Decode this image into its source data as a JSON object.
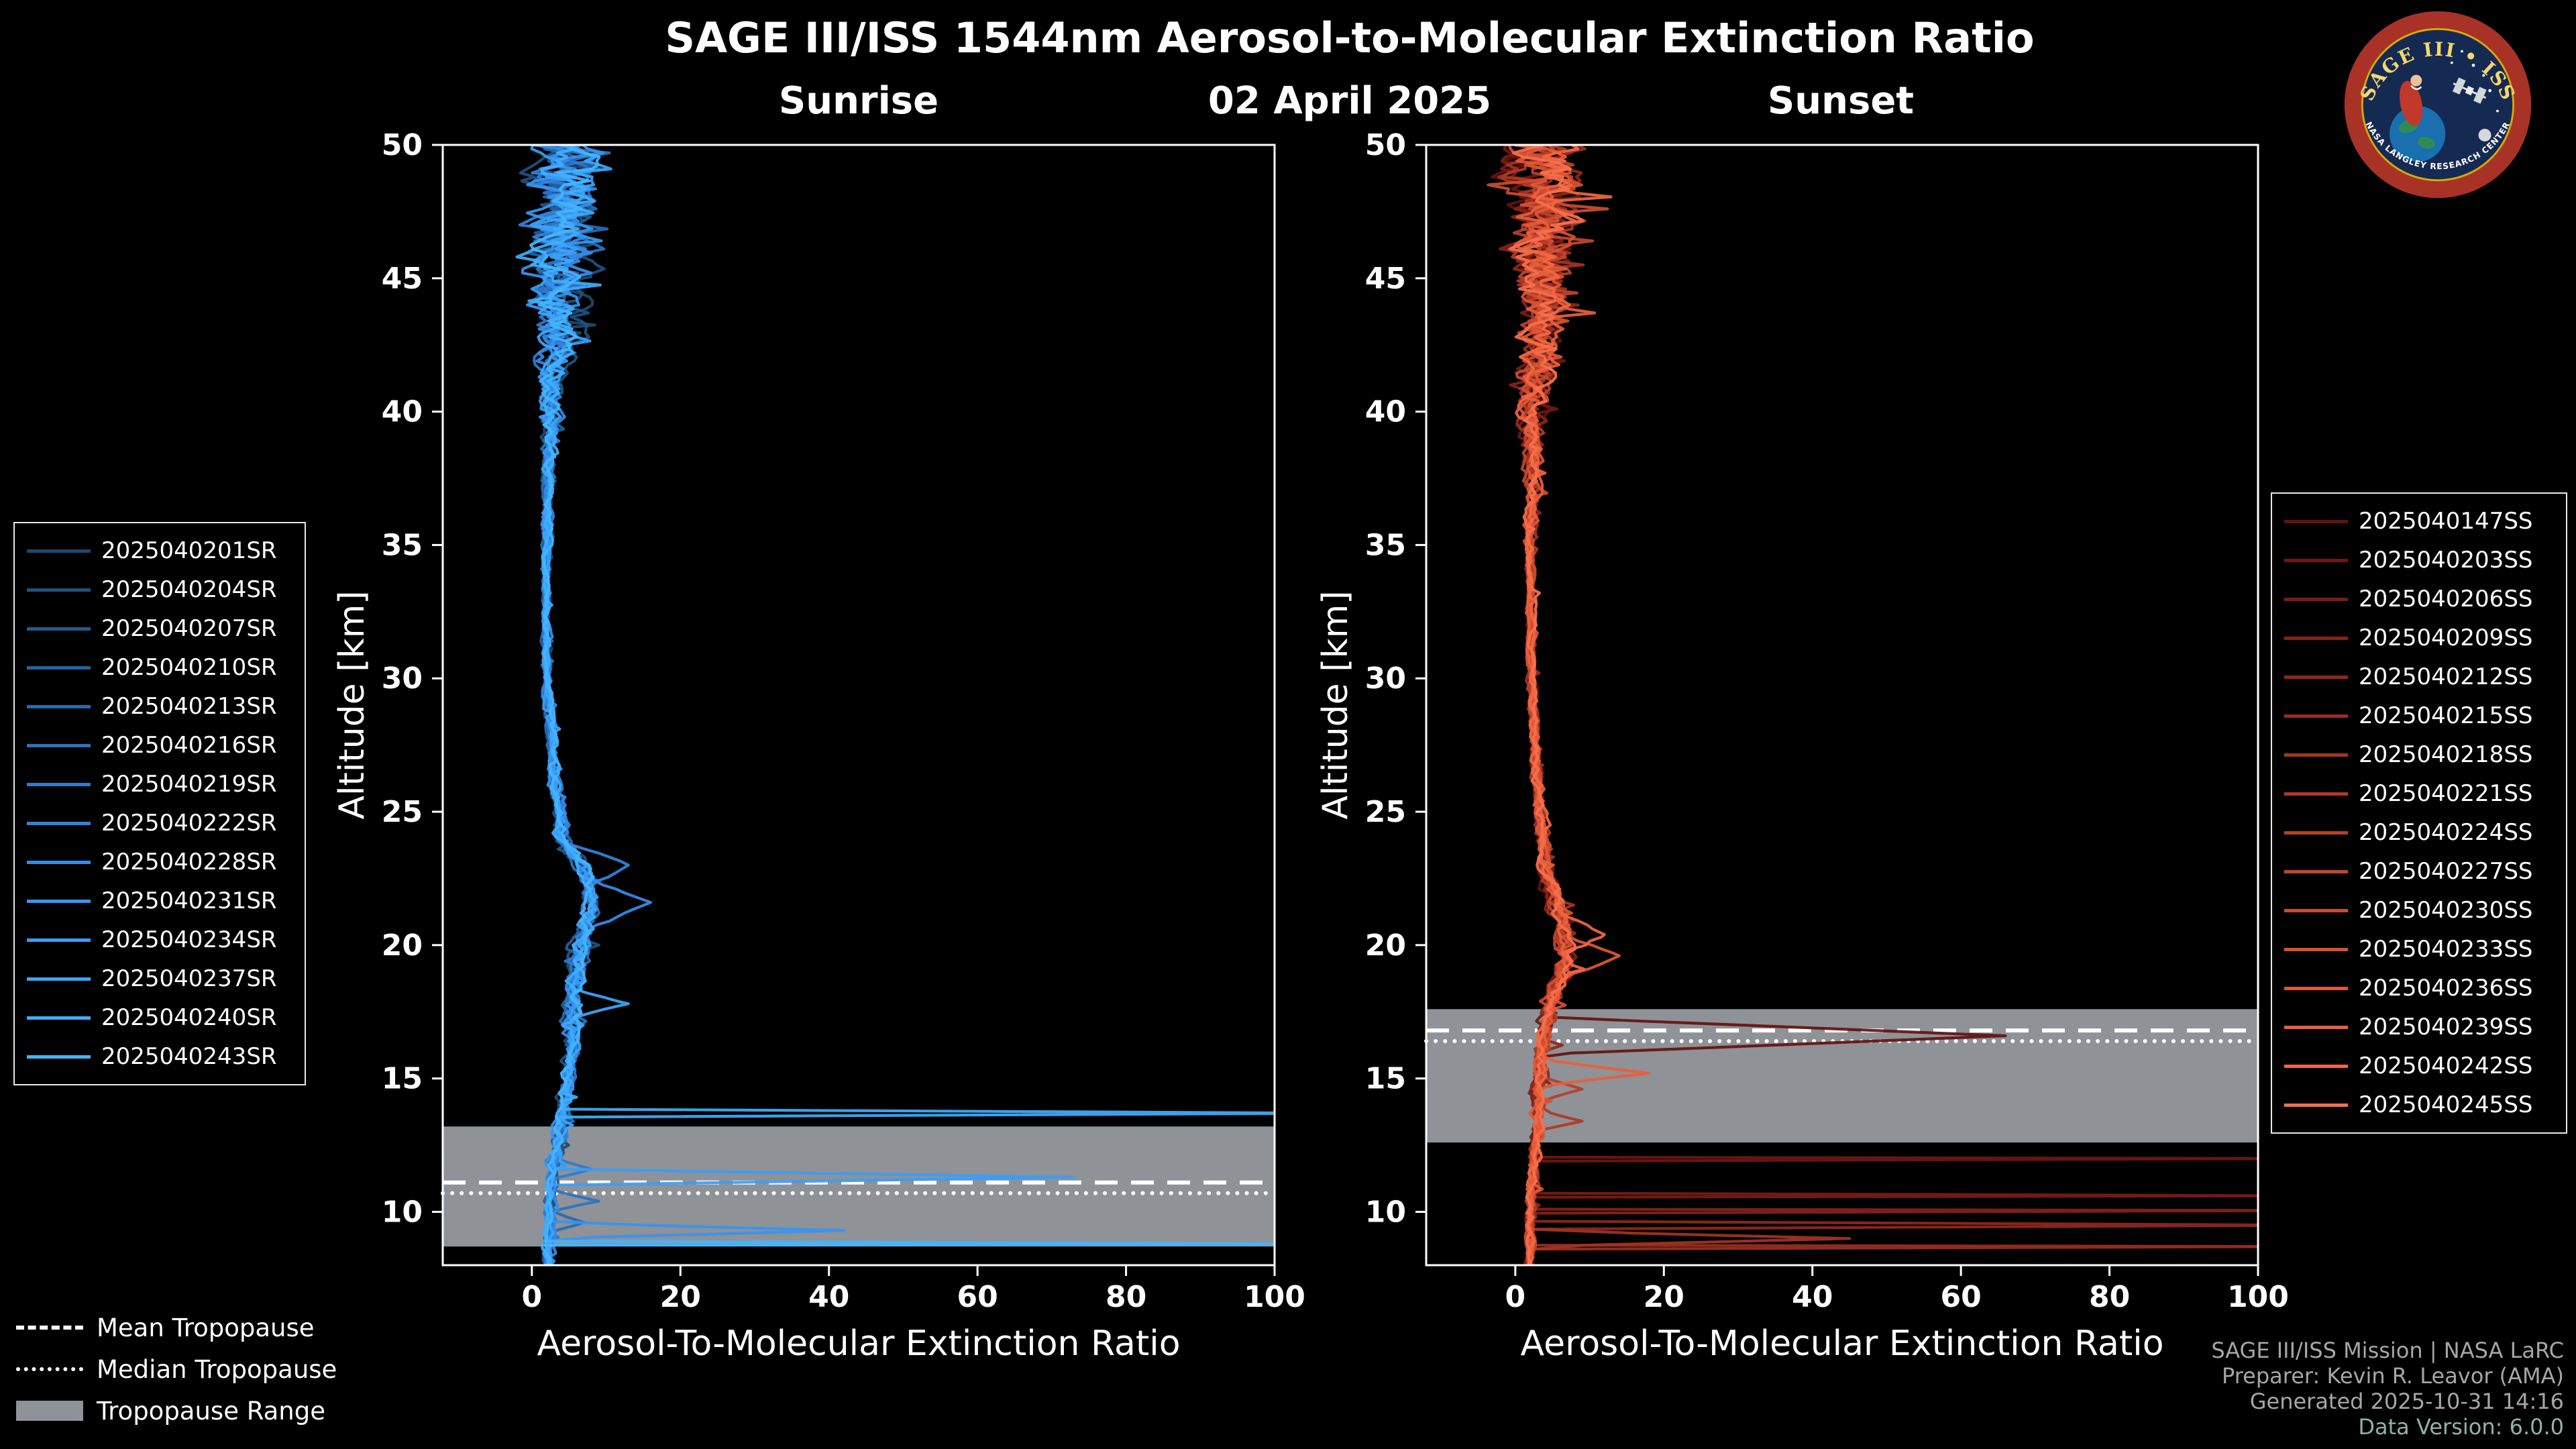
{
  "header": {
    "title": "SAGE III/ISS 1544nm Aerosol-to-Molecular Extinction Ratio",
    "date": "02 April 2025"
  },
  "logo": {
    "title_arc": "SAGE III • ISS",
    "bottom_arc": "NASA LANGLEY RESEARCH CENTER"
  },
  "tropopause_legend": {
    "mean_label": "Mean Tropopause",
    "median_label": "Median Tropopause",
    "range_label": "Tropopause Range"
  },
  "credits": {
    "line1": "SAGE III/ISS Mission | NASA LaRC",
    "line2": "Preparer: Kevin R. Leavor (AMA)",
    "line3": "Generated 2025-10-31 14:16",
    "line4": "Data Version: 6.0.0"
  },
  "chart_data": [
    {
      "type": "line",
      "title": "Sunrise",
      "xlabel": "Aerosol-To-Molecular Extinction Ratio",
      "ylabel": "Altitude [km]",
      "xlim": [
        -12,
        100
      ],
      "ylim": [
        8,
        50
      ],
      "xticks": [
        0,
        20,
        40,
        60,
        80,
        100
      ],
      "yticks": [
        10,
        15,
        20,
        25,
        30,
        35,
        40,
        45,
        50
      ],
      "grid": false,
      "legend_position": "left",
      "line_color_family": "blues",
      "tropopause": {
        "mean_km": 11.1,
        "median_km": 10.7,
        "range_km": [
          8.7,
          13.2
        ]
      },
      "base_profile": [
        [
          8,
          2
        ],
        [
          10,
          2.5
        ],
        [
          12,
          3
        ],
        [
          14,
          4.5
        ],
        [
          16,
          5
        ],
        [
          18,
          5.5
        ],
        [
          20,
          6.5
        ],
        [
          21.5,
          8
        ],
        [
          23,
          7
        ],
        [
          24,
          4
        ],
        [
          26,
          3
        ],
        [
          30,
          2
        ],
        [
          34,
          2
        ],
        [
          38,
          2.2
        ],
        [
          42,
          3
        ],
        [
          45,
          4
        ],
        [
          48,
          4
        ],
        [
          50,
          4
        ]
      ],
      "noise_amplitude": [
        [
          8,
          0.7
        ],
        [
          12,
          1
        ],
        [
          16,
          1.2
        ],
        [
          20,
          1.5
        ],
        [
          24,
          1.2
        ],
        [
          28,
          0.7
        ],
        [
          34,
          0.6
        ],
        [
          38,
          1
        ],
        [
          41,
          2
        ],
        [
          44,
          4
        ],
        [
          47,
          6
        ],
        [
          50,
          6
        ]
      ],
      "series": [
        {
          "name": "2025040201SR",
          "color": "#1c4a70",
          "seed": 3,
          "spikes": []
        },
        {
          "name": "2025040204SR",
          "color": "#1f5280",
          "seed": 7,
          "spikes": []
        },
        {
          "name": "2025040207SR",
          "color": "#225a90",
          "seed": 11,
          "spikes": []
        },
        {
          "name": "2025040210SR",
          "color": "#2562a0",
          "seed": 19,
          "spikes": []
        },
        {
          "name": "2025040213SR",
          "color": "#286bb0",
          "seed": 23,
          "spikes": [
            [
              9.6,
              7,
              0.4
            ]
          ]
        },
        {
          "name": "2025040216SR",
          "color": "#2b73c0",
          "seed": 31,
          "spikes": [
            [
              10.4,
              9,
              0.4
            ]
          ]
        },
        {
          "name": "2025040219SR",
          "color": "#2e7bd0",
          "seed": 37,
          "spikes": [
            [
              11.6,
              8,
              0.4
            ]
          ]
        },
        {
          "name": "2025040222SR",
          "color": "#3184de",
          "seed": 41,
          "spikes": [
            [
              23.0,
              13,
              0.8
            ]
          ]
        },
        {
          "name": "2025040228SR",
          "color": "#348ce8",
          "seed": 43,
          "spikes": [
            [
              21.6,
              16,
              0.9
            ]
          ]
        },
        {
          "name": "2025040231SR",
          "color": "#3795f0",
          "seed": 53,
          "spikes": [
            [
              9.3,
              42,
              0.3
            ]
          ]
        },
        {
          "name": "2025040234SR",
          "color": "#3a9df6",
          "seed": 59,
          "spikes": [
            [
              11.3,
              73,
              0.3
            ]
          ]
        },
        {
          "name": "2025040237SR",
          "color": "#3da5fa",
          "seed": 61,
          "spikes": [
            [
              17.8,
              13,
              0.5
            ]
          ]
        },
        {
          "name": "2025040240SR",
          "color": "#40adfd",
          "seed": 67,
          "spikes": [
            [
              13.7,
              108,
              0.04
            ]
          ]
        },
        {
          "name": "2025040243SR",
          "color": "#45b5ff",
          "seed": 71,
          "spikes": [
            [
              8.8,
              108,
              0.04
            ]
          ]
        }
      ]
    },
    {
      "type": "line",
      "title": "Sunset",
      "xlabel": "Aerosol-To-Molecular Extinction Ratio",
      "ylabel": "Altitude [km]",
      "xlim": [
        -12,
        100
      ],
      "ylim": [
        8,
        50
      ],
      "xticks": [
        0,
        20,
        40,
        60,
        80,
        100
      ],
      "yticks": [
        10,
        15,
        20,
        25,
        30,
        35,
        40,
        45,
        50
      ],
      "grid": false,
      "legend_position": "right",
      "line_color_family": "reds",
      "tropopause": {
        "mean_km": 16.8,
        "median_km": 16.4,
        "range_km": [
          12.6,
          17.6
        ]
      },
      "base_profile": [
        [
          8,
          2
        ],
        [
          10,
          2
        ],
        [
          12,
          2.5
        ],
        [
          14,
          3
        ],
        [
          16,
          3.5
        ],
        [
          18,
          5
        ],
        [
          19.5,
          7
        ],
        [
          21,
          6
        ],
        [
          23,
          4
        ],
        [
          26,
          3
        ],
        [
          30,
          2.2
        ],
        [
          35,
          2
        ],
        [
          40,
          2.5
        ],
        [
          44,
          3.5
        ],
        [
          47,
          4
        ],
        [
          50,
          4
        ]
      ],
      "noise_amplitude": [
        [
          8,
          0.6
        ],
        [
          12,
          0.9
        ],
        [
          16,
          1.2
        ],
        [
          20,
          1.5
        ],
        [
          24,
          1
        ],
        [
          28,
          0.7
        ],
        [
          34,
          0.6
        ],
        [
          38,
          1.2
        ],
        [
          41,
          2.5
        ],
        [
          44,
          4
        ],
        [
          47,
          5.5
        ],
        [
          50,
          6
        ]
      ],
      "series": [
        {
          "name": "2025040147SS",
          "color": "#641210",
          "seed": 101,
          "spikes": [
            [
              16.6,
              66,
              0.7
            ]
          ]
        },
        {
          "name": "2025040203SS",
          "color": "#6f1713",
          "seed": 103,
          "spikes": [
            [
              12.0,
              108,
              0.04
            ]
          ]
        },
        {
          "name": "2025040206SS",
          "color": "#7a1c16",
          "seed": 107,
          "spikes": [
            [
              10.6,
              108,
              0.04
            ]
          ]
        },
        {
          "name": "2025040209SS",
          "color": "#852219",
          "seed": 109,
          "spikes": [
            [
              10.05,
              108,
              0.04
            ]
          ]
        },
        {
          "name": "2025040212SS",
          "color": "#90281c",
          "seed": 113,
          "spikes": [
            [
              9.5,
              108,
              0.04
            ]
          ]
        },
        {
          "name": "2025040215SS",
          "color": "#9a2e20",
          "seed": 127,
          "spikes": [
            [
              8.7,
              108,
              0.04
            ]
          ]
        },
        {
          "name": "2025040218SS",
          "color": "#a43423",
          "seed": 131,
          "spikes": [
            [
              9.0,
              45,
              0.3
            ]
          ]
        },
        {
          "name": "2025040221SS",
          "color": "#ae3a26",
          "seed": 137,
          "spikes": [
            [
              13.4,
              9,
              0.4
            ]
          ]
        },
        {
          "name": "2025040224SS",
          "color": "#b84029",
          "seed": 139,
          "spikes": [
            [
              14.6,
              9,
              0.5
            ]
          ]
        },
        {
          "name": "2025040227SS",
          "color": "#c2462c",
          "seed": 149,
          "spikes": []
        },
        {
          "name": "2025040230SS",
          "color": "#cc4c30",
          "seed": 151,
          "spikes": []
        },
        {
          "name": "2025040233SS",
          "color": "#d65233",
          "seed": 157,
          "spikes": []
        },
        {
          "name": "2025040236SS",
          "color": "#e05836",
          "seed": 163,
          "spikes": [
            [
              19.6,
              14,
              0.8
            ]
          ]
        },
        {
          "name": "2025040239SS",
          "color": "#e95f3b",
          "seed": 167,
          "spikes": [
            [
              15.2,
              18,
              0.5
            ]
          ]
        },
        {
          "name": "2025040242SS",
          "color": "#f16743",
          "seed": 173,
          "spikes": [
            [
              20.4,
              12,
              0.7
            ]
          ]
        },
        {
          "name": "2025040245SS",
          "color": "#f5704d",
          "seed": 179,
          "spikes": []
        }
      ]
    }
  ]
}
